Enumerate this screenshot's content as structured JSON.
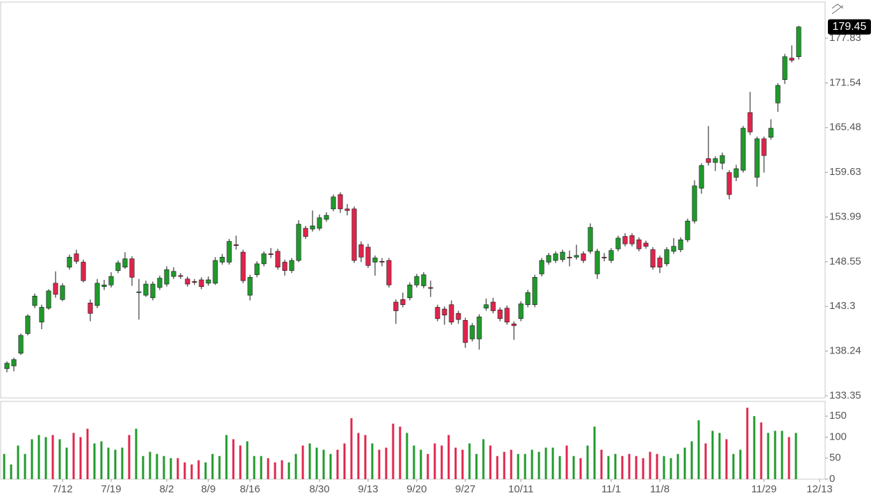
{
  "chart_data": [
    {
      "type": "candlestick",
      "yscale": "log",
      "ylim": [
        133.35,
        182.87
      ],
      "yticks": [
        133.35,
        138.24,
        143.3,
        148.55,
        153.99,
        159.63,
        165.48,
        171.54,
        177.83
      ],
      "xlim": [
        -1,
        117.8
      ],
      "xticks": [
        {
          "value": 8,
          "label": "7/12"
        },
        {
          "value": 15,
          "label": "7/19"
        },
        {
          "value": 23,
          "label": "8/2"
        },
        {
          "value": 29,
          "label": "8/9"
        },
        {
          "value": 35,
          "label": "8/16"
        },
        {
          "value": 45,
          "label": "8/30"
        },
        {
          "value": 52,
          "label": "9/13"
        },
        {
          "value": 59,
          "label": "9/20"
        },
        {
          "value": 66,
          "label": "9/27"
        },
        {
          "value": 74,
          "label": "10/11"
        },
        {
          "value": 87,
          "label": "11/1"
        },
        {
          "value": 94,
          "label": "11/8"
        },
        {
          "value": 109,
          "label": "11/29"
        },
        {
          "value": 117,
          "label": "12/13"
        }
      ],
      "up_color": "#1f9a2b",
      "down_color": "#e0244c",
      "last_label": 179.45,
      "open": [
        136.3,
        136.6,
        138.0,
        140.2,
        143.4,
        141.5,
        143.1,
        146.0,
        144.1,
        147.9,
        149.5,
        148.5,
        143.7,
        143.4,
        145.6,
        145.8,
        147.5,
        147.9,
        148.9,
        144.9,
        144.6,
        144.3,
        145.5,
        145.9,
        146.8,
        146.9,
        146.5,
        146.2,
        146.4,
        146.0,
        146.0,
        148.5,
        148.5,
        150.6,
        149.7,
        144.6,
        147.0,
        148.3,
        149.5,
        149.8,
        148.5,
        147.5,
        148.7,
        152.6,
        152.5,
        152.6,
        153.7,
        155.0,
        156.8,
        155.0,
        155.0,
        150.6,
        150.3,
        148.5,
        148.6,
        148.7,
        143.8,
        144.1,
        144.3,
        145.8,
        145.7,
        145.5,
        143.2,
        143.0,
        143.5,
        142.5,
        141.7,
        139.6,
        139.6,
        143.1,
        143.8,
        142.9,
        143.1,
        141.3,
        141.9,
        143.5,
        143.5,
        147.1,
        148.5,
        148.7,
        148.8,
        149.1,
        149.1,
        149.5,
        149.8,
        147.1,
        149.1,
        148.7,
        150.1,
        151.6,
        151.7,
        151.2,
        150.8,
        150.0,
        149.0,
        148.3,
        149.8,
        150.0,
        151.2,
        153.5,
        157.6,
        161.4,
        160.9,
        160.8,
        159.6,
        159.0,
        159.9,
        167.5,
        159.0,
        164.0,
        164.2,
        168.8,
        172.0,
        175.0,
        175.2
      ],
      "high": [
        137.1,
        137.5,
        140.2,
        142.4,
        144.8,
        143.5,
        145.3,
        147.4,
        146.0,
        149.4,
        150.0,
        148.8,
        144.1,
        146.5,
        146.4,
        147.3,
        148.7,
        149.7,
        149.2,
        146.5,
        146.3,
        146.2,
        146.9,
        148.0,
        147.9,
        147.2,
        146.8,
        146.5,
        146.7,
        146.8,
        149.1,
        149.5,
        151.3,
        151.7,
        150.0,
        147.0,
        148.6,
        149.8,
        150.2,
        150.1,
        148.8,
        149.0,
        153.6,
        152.9,
        154.8,
        154.3,
        154.6,
        156.8,
        157.1,
        155.6,
        155.3,
        151.0,
        150.7,
        149.3,
        149.0,
        149.0,
        144.1,
        144.9,
        146.1,
        147.1,
        147.3,
        146.3,
        143.5,
        143.3,
        144.0,
        142.8,
        142.0,
        141.4,
        142.4,
        144.2,
        144.3,
        143.2,
        143.4,
        141.6,
        143.9,
        145.2,
        147.0,
        149.0,
        149.6,
        149.8,
        150.0,
        149.9,
        150.6,
        149.8,
        153.2,
        150.1,
        149.6,
        150.2,
        151.7,
        152.0,
        152.0,
        151.5,
        151.1,
        150.3,
        149.3,
        150.3,
        151.4,
        151.5,
        153.8,
        158.6,
        160.8,
        165.7,
        161.7,
        162.2,
        159.9,
        160.6,
        165.7,
        170.3,
        164.3,
        164.3,
        166.6,
        171.5,
        175.6,
        176.8,
        179.6
      ],
      "low": [
        135.9,
        136.0,
        137.8,
        140.0,
        143.1,
        140.7,
        142.9,
        144.3,
        143.9,
        147.6,
        148.3,
        146.1,
        141.6,
        143.1,
        145.2,
        145.5,
        147.2,
        147.7,
        145.7,
        141.8,
        144.4,
        144.0,
        145.2,
        145.6,
        146.5,
        146.5,
        145.6,
        145.8,
        145.3,
        145.7,
        145.8,
        148.2,
        148.2,
        150.0,
        146.0,
        144.0,
        146.7,
        148.0,
        149.0,
        147.6,
        146.9,
        147.2,
        148.5,
        151.3,
        152.2,
        152.3,
        153.4,
        154.7,
        154.5,
        154.2,
        148.4,
        148.5,
        147.8,
        146.9,
        148.0,
        145.5,
        141.3,
        143.2,
        144.0,
        145.5,
        145.4,
        144.4,
        141.6,
        141.2,
        141.2,
        141.3,
        138.6,
        139.3,
        138.4,
        142.8,
        142.5,
        141.6,
        141.2,
        139.5,
        141.6,
        143.2,
        143.2,
        146.8,
        148.2,
        148.4,
        148.5,
        148.0,
        148.8,
        148.4,
        149.5,
        146.5,
        148.6,
        148.4,
        149.8,
        150.4,
        150.4,
        149.8,
        150.1,
        147.6,
        147.2,
        148.0,
        149.5,
        149.7,
        150.9,
        153.2,
        156.9,
        160.5,
        159.8,
        160.0,
        156.2,
        158.5,
        159.6,
        164.5,
        157.8,
        159.6,
        163.9,
        167.6,
        171.4,
        174.4,
        174.8
      ],
      "close": [
        136.9,
        137.3,
        140.0,
        142.2,
        144.5,
        143.2,
        145.1,
        144.7,
        145.7,
        149.1,
        148.6,
        146.3,
        142.5,
        146.0,
        145.8,
        146.8,
        148.4,
        148.9,
        146.7,
        145.0,
        145.9,
        145.9,
        146.6,
        147.6,
        147.4,
        146.8,
        145.9,
        146.1,
        145.6,
        146.4,
        148.7,
        149.1,
        151.0,
        150.5,
        146.3,
        146.7,
        148.3,
        149.5,
        149.4,
        147.9,
        147.5,
        148.7,
        153.1,
        151.6,
        152.9,
        153.9,
        154.2,
        156.5,
        155.0,
        154.8,
        148.7,
        149.1,
        148.1,
        149.0,
        148.5,
        145.8,
        142.8,
        143.5,
        145.8,
        146.8,
        147.0,
        145.4,
        141.9,
        142.3,
        141.5,
        141.8,
        139.2,
        141.1,
        142.1,
        143.5,
        142.8,
        141.9,
        141.5,
        141.1,
        143.6,
        144.9,
        146.7,
        148.7,
        149.3,
        149.5,
        149.7,
        149.0,
        149.3,
        148.7,
        152.7,
        149.8,
        149.0,
        149.9,
        151.4,
        150.7,
        150.7,
        150.1,
        150.4,
        147.9,
        147.9,
        150.0,
        150.4,
        151.2,
        153.5,
        157.9,
        160.5,
        160.9,
        161.4,
        161.8,
        156.8,
        160.1,
        165.4,
        164.9,
        164.0,
        161.8,
        165.4,
        171.2,
        175.2,
        174.7,
        179.45
      ]
    },
    {
      "type": "bar",
      "ylim": [
        0,
        185
      ],
      "yticks": [
        0,
        50,
        100,
        150
      ],
      "values": [
        60,
        35,
        80,
        60,
        95,
        105,
        100,
        105,
        95,
        75,
        110,
        100,
        120,
        85,
        90,
        75,
        70,
        75,
        105,
        120,
        55,
        65,
        60,
        55,
        50,
        50,
        40,
        35,
        45,
        40,
        60,
        55,
        105,
        95,
        80,
        90,
        55,
        55,
        50,
        40,
        45,
        40,
        60,
        80,
        85,
        75,
        70,
        60,
        70,
        85,
        145,
        110,
        105,
        85,
        70,
        75,
        132,
        125,
        110,
        80,
        70,
        60,
        85,
        80,
        105,
        75,
        70,
        85,
        60,
        95,
        80,
        55,
        65,
        70,
        60,
        60,
        70,
        65,
        75,
        75,
        55,
        80,
        55,
        50,
        80,
        125,
        70,
        55,
        60,
        55,
        60,
        55,
        50,
        65,
        60,
        55,
        50,
        60,
        75,
        90,
        140,
        85,
        115,
        110,
        95,
        60,
        70,
        170,
        150,
        135,
        110,
        115,
        115,
        100,
        110
      ]
    }
  ]
}
